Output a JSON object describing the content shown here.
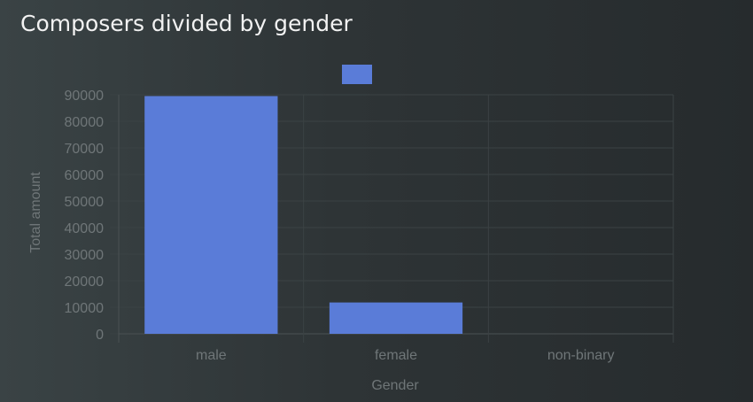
{
  "title": "Composers divided by gender",
  "colors": {
    "bar": "#5a7cd8"
  },
  "chart_data": {
    "type": "bar",
    "title": "Composers divided by gender",
    "categories": [
      "male",
      "female",
      "non-binary"
    ],
    "series": [
      {
        "values": [
          89500,
          11800,
          0
        ]
      }
    ],
    "xlabel": "Gender",
    "ylabel": "Total amount",
    "ylim": [
      0,
      90000
    ],
    "yticks": [
      0,
      10000,
      20000,
      30000,
      40000,
      50000,
      60000,
      70000,
      80000,
      90000
    ],
    "grid": true,
    "legend": "top-center"
  }
}
